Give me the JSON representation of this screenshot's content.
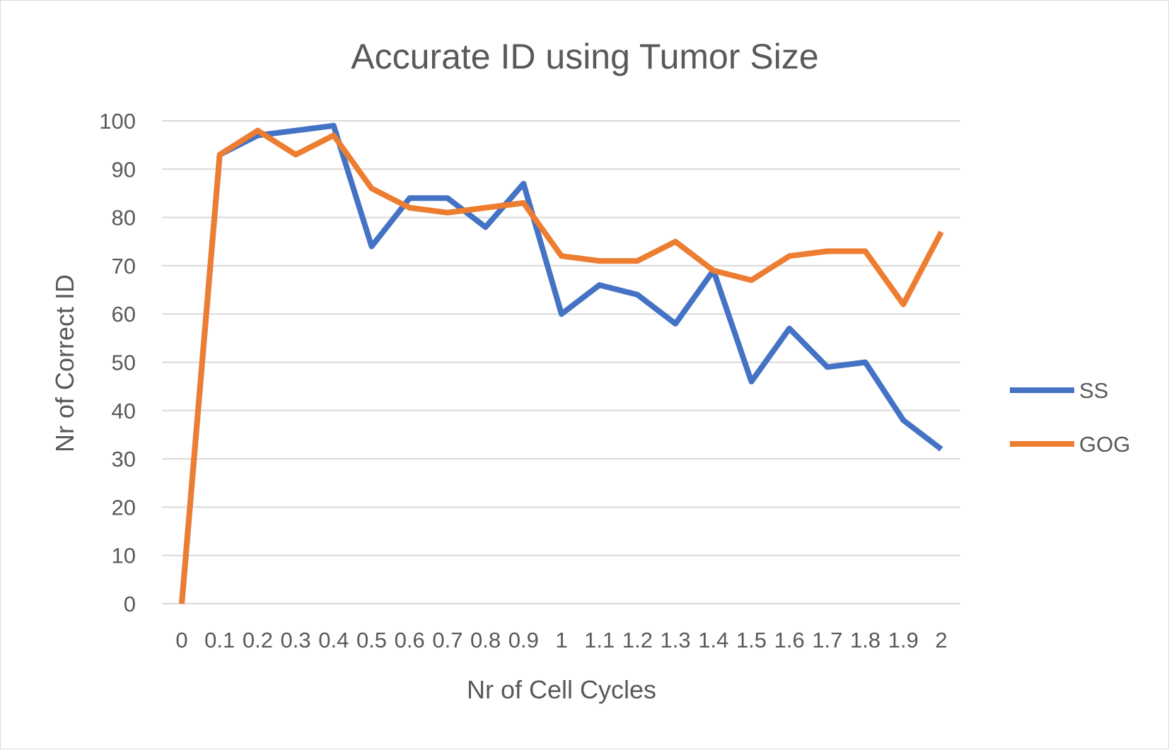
{
  "chart_data": {
    "type": "line",
    "title": "Accurate ID using Tumor Size",
    "xlabel": "Nr of Cell Cycles",
    "ylabel": "Nr of Correct ID",
    "categories": [
      "0",
      "0.1",
      "0.2",
      "0.3",
      "0.4",
      "0.5",
      "0.6",
      "0.7",
      "0.8",
      "0.9",
      "1",
      "1.1",
      "1.2",
      "1.3",
      "1.4",
      "1.5",
      "1.6",
      "1.7",
      "1.8",
      "1.9",
      "2"
    ],
    "ylim": [
      0,
      100
    ],
    "yticks": [
      "0",
      "10",
      "20",
      "30",
      "40",
      "50",
      "60",
      "70",
      "80",
      "90",
      "100"
    ],
    "grid": true,
    "legend_position": "right",
    "series": [
      {
        "name": "SS",
        "color": "#4472C4",
        "values": [
          0,
          93,
          97,
          98,
          99,
          74,
          84,
          84,
          78,
          87,
          60,
          66,
          64,
          58,
          69,
          46,
          57,
          49,
          50,
          38,
          32
        ]
      },
      {
        "name": "GOG",
        "color": "#ED7D31",
        "values": [
          0,
          93,
          98,
          93,
          97,
          86,
          82,
          81,
          82,
          83,
          72,
          71,
          71,
          75,
          69,
          67,
          72,
          73,
          73,
          62,
          77
        ]
      }
    ]
  }
}
